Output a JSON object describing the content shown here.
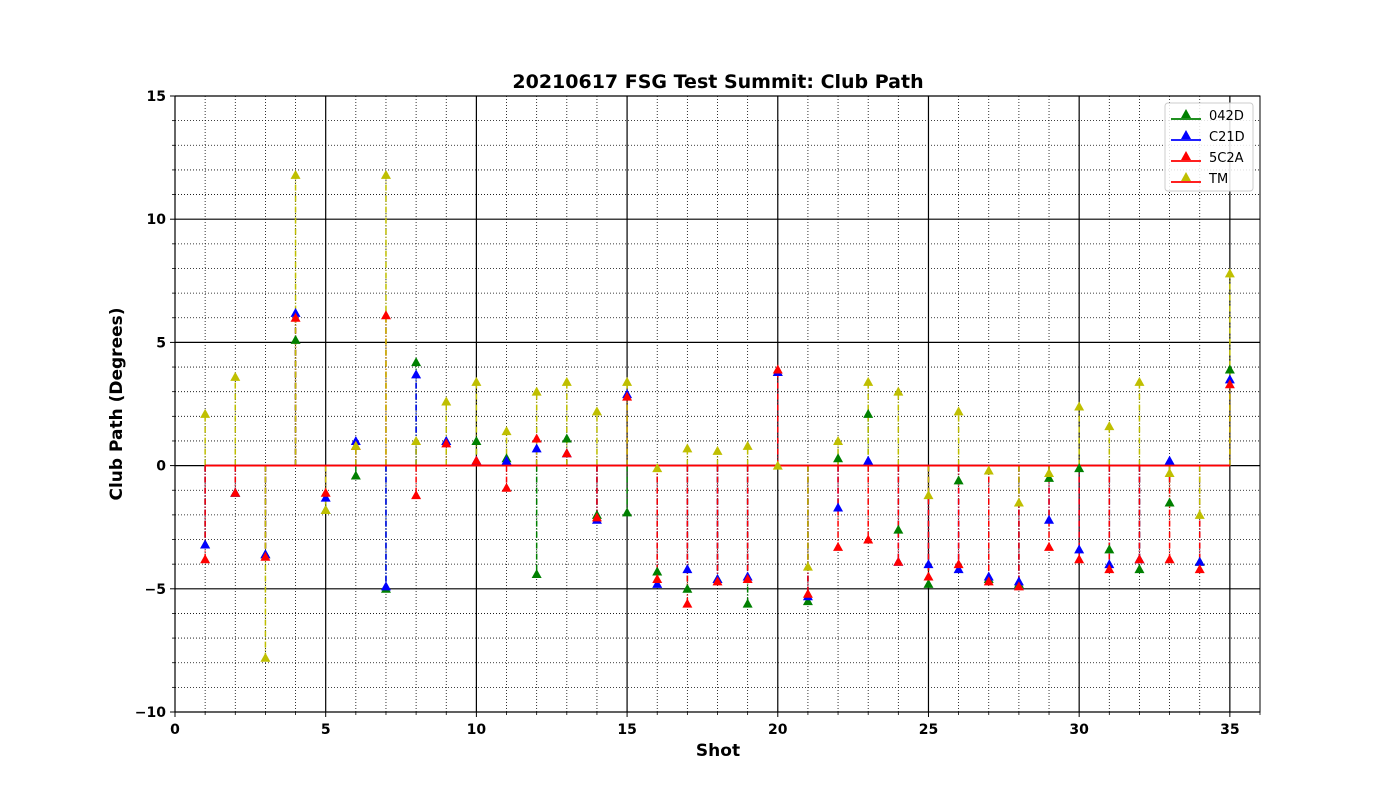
{
  "chart_data": {
    "type": "scatter",
    "title": "20210617 FSG Test Summit: Club Path",
    "xlabel": "Shot",
    "ylabel": "Club Path (Degrees)",
    "xlim": [
      0,
      36
    ],
    "ylim": [
      -10,
      15
    ],
    "x_ticks": [
      0,
      5,
      10,
      15,
      20,
      25,
      30,
      35
    ],
    "y_ticks": [
      -10,
      -5,
      0,
      5,
      10,
      15
    ],
    "x_tick_labels": [
      "0",
      "5",
      "10",
      "15",
      "20",
      "25",
      "30",
      "35"
    ],
    "y_tick_labels": [
      "−10",
      "−5",
      "0",
      "5",
      "10",
      "15"
    ],
    "x_minor_step": 1,
    "y_minor_step": 1,
    "grid": true,
    "legend_position": "top-right",
    "baseline": 0,
    "x": [
      1,
      2,
      3,
      4,
      5,
      6,
      7,
      8,
      9,
      10,
      11,
      12,
      13,
      14,
      15,
      16,
      17,
      18,
      19,
      20,
      21,
      22,
      23,
      24,
      25,
      26,
      27,
      28,
      29,
      30,
      31,
      32,
      33,
      34,
      35
    ],
    "series": [
      {
        "name": "042D",
        "marker_color": "#008000",
        "line_color": "#008000",
        "values": [
          -3.2,
          -1.1,
          -3.6,
          5.1,
          -1.8,
          -0.4,
          -5.0,
          4.2,
          1.0,
          1.0,
          0.3,
          -4.4,
          1.1,
          -2.0,
          -1.9,
          -4.3,
          -5.0,
          -4.6,
          -5.6,
          3.8,
          -5.5,
          0.3,
          2.1,
          -2.6,
          -4.8,
          -0.6,
          -4.6,
          -4.8,
          -0.5,
          -0.1,
          -3.4,
          -4.2,
          -1.5,
          -3.9,
          3.9
        ]
      },
      {
        "name": "C21D",
        "marker_color": "#0000ff",
        "line_color": "#0000ff",
        "values": [
          -3.2,
          -1.1,
          -3.6,
          6.2,
          -1.3,
          1.0,
          -4.9,
          3.7,
          1.0,
          0.2,
          0.2,
          0.7,
          0.5,
          -2.2,
          2.9,
          -4.8,
          -4.2,
          -4.6,
          -4.5,
          3.8,
          -5.3,
          -1.7,
          0.2,
          -3.9,
          -4.0,
          -4.2,
          -4.5,
          -4.7,
          -2.2,
          -3.4,
          -4.0,
          -3.8,
          0.2,
          -3.9,
          3.5
        ]
      },
      {
        "name": "5C2A",
        "marker_color": "#ff0000",
        "line_color": "#ff0000",
        "values": [
          -3.8,
          -1.1,
          -3.7,
          6.0,
          -1.1,
          0.8,
          6.1,
          -1.2,
          0.9,
          0.2,
          -0.9,
          1.1,
          0.5,
          -2.1,
          2.8,
          -4.6,
          -5.6,
          -4.7,
          -4.6,
          3.9,
          -5.2,
          -3.3,
          -3.0,
          -3.9,
          -4.5,
          -4.0,
          -4.7,
          -4.9,
          -3.3,
          -3.8,
          -4.2,
          -3.8,
          -3.8,
          -4.2,
          3.3
        ]
      },
      {
        "name": "TM",
        "marker_color": "#bfbf00",
        "line_color": "#ff0000",
        "values": [
          2.1,
          3.6,
          -7.8,
          11.8,
          -1.8,
          0.8,
          11.8,
          1.0,
          2.6,
          3.4,
          1.4,
          3.0,
          3.4,
          2.2,
          3.4,
          -0.1,
          0.7,
          0.6,
          0.8,
          0.0,
          -4.1,
          1.0,
          3.4,
          3.0,
          -1.2,
          2.2,
          -0.2,
          -1.5,
          -0.3,
          2.4,
          1.6,
          3.4,
          -0.3,
          -2.0,
          7.8
        ]
      }
    ]
  }
}
